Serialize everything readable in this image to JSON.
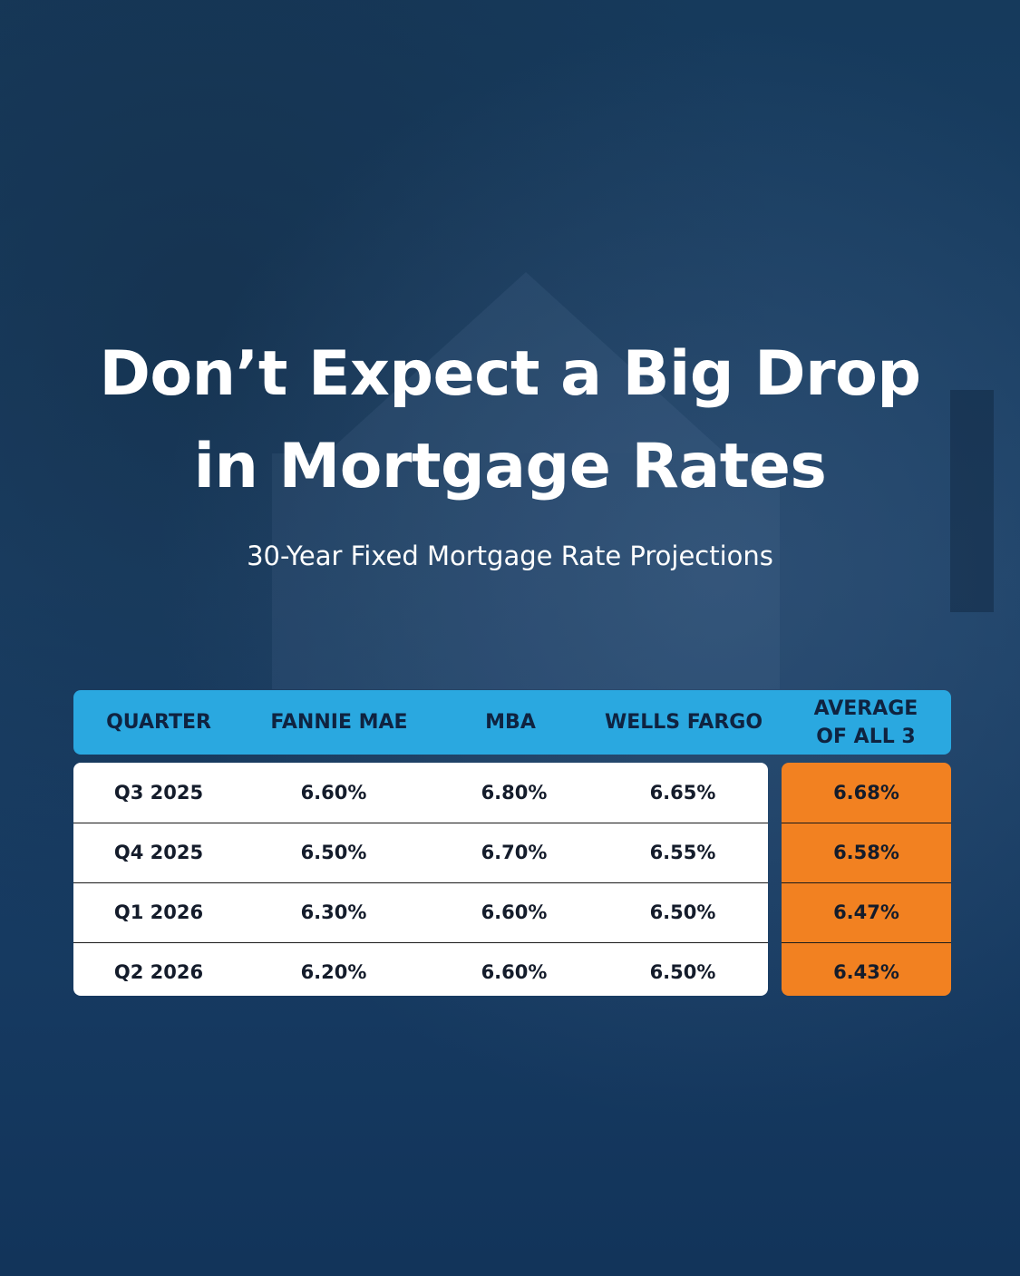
{
  "headline": {
    "line1": "Don’t Expect a Big Drop",
    "line2": "in Mortgage Rates"
  },
  "subtitle": "30-Year Fixed Mortgage Rate Projections",
  "colors": {
    "background": "#163a5c",
    "header": "#2aa8e0",
    "average_column": "#f28121",
    "text_dark": "#141c2b"
  },
  "chart_data": {
    "type": "table",
    "columns": [
      "QUARTER",
      "FANNIE MAE",
      "MBA",
      "WELLS FARGO",
      "AVERAGE OF ALL 3"
    ],
    "rows": [
      {
        "quarter": "Q3 2025",
        "fannie_mae": "6.60%",
        "mba": "6.80%",
        "wells_fargo": "6.65%",
        "average": "6.68%"
      },
      {
        "quarter": "Q4 2025",
        "fannie_mae": "6.50%",
        "mba": "6.70%",
        "wells_fargo": "6.55%",
        "average": "6.58%"
      },
      {
        "quarter": "Q1 2026",
        "fannie_mae": "6.30%",
        "mba": "6.60%",
        "wells_fargo": "6.50%",
        "average": "6.47%"
      },
      {
        "quarter": "Q2 2026",
        "fannie_mae": "6.20%",
        "mba": "6.60%",
        "wells_fargo": "6.50%",
        "average": "6.43%"
      }
    ]
  }
}
